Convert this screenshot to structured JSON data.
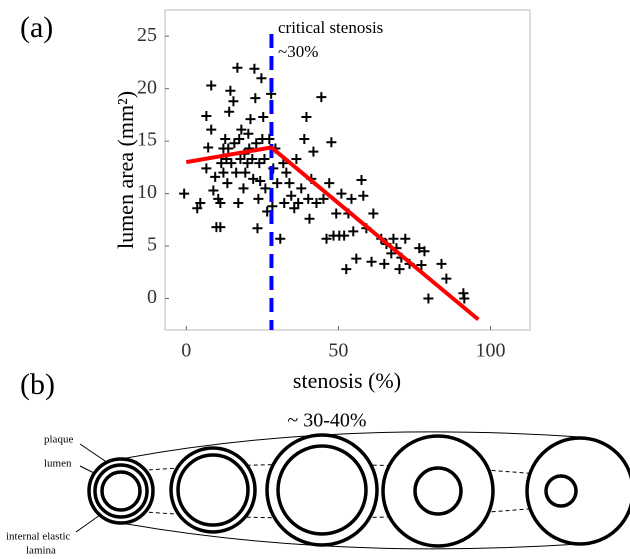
{
  "chart_data": {
    "type": "scatter",
    "panel_label": "(a)",
    "xlabel": "stenosis (%)",
    "ylabel": "lumen area (mm²)",
    "xlim": [
      -7,
      113
    ],
    "ylim": [
      -3,
      27.5
    ],
    "xticks": [
      0,
      50,
      100
    ],
    "yticks": [
      0,
      5,
      10,
      15,
      20,
      25
    ],
    "color": "#000000",
    "x": [
      -0.7,
      3.6,
      4.6,
      6.6,
      6.6,
      7.2,
      8.2,
      8.2,
      8.9,
      9.5,
      9.9,
      10.5,
      11.2,
      11.2,
      11.5,
      12.2,
      12.2,
      12.8,
      13.2,
      13.5,
      13.8,
      14.1,
      14.5,
      14.8,
      15.5,
      15.8,
      16.4,
      16.8,
      17.1,
      17.4,
      17.8,
      18.1,
      18.8,
      19.1,
      19.4,
      20.1,
      20.4,
      20.7,
      21.1,
      21.7,
      22,
      22.4,
      22.7,
      23,
      23.4,
      23.7,
      24,
      24.3,
      24.7,
      25,
      25.3,
      25.7,
      26,
      26.6,
      27.3,
      27.9,
      28.3,
      28.6,
      29.3,
      29.9,
      30.9,
      31.9,
      32.2,
      32.9,
      33.9,
      34.5,
      35.5,
      36.2,
      36.8,
      37.8,
      38.8,
      39.5,
      40.1,
      40.5,
      41.1,
      41.8,
      42.8,
      44.4,
      45.1,
      46.1,
      47,
      47.7,
      48.4,
      49.3,
      50.3,
      51,
      51.9,
      52.6,
      53.3,
      54.3,
      54.9,
      55.9,
      57.6,
      58.2,
      59.2,
      60.9,
      61.5,
      64.1,
      65.1,
      65.8,
      67.4,
      68.1,
      69.1,
      70.1,
      70.7,
      72,
      73.4,
      76.6,
      77.3,
      78.3,
      79.6,
      83.9,
      85.5,
      91.1,
      91.4
    ],
    "values": [
      10,
      8.6,
      9.1,
      12.4,
      17.4,
      14.4,
      20.3,
      16.1,
      10.3,
      11.6,
      6.8,
      9.5,
      6.8,
      9.1,
      12.9,
      14.3,
      12,
      15.2,
      13.3,
      11,
      14.3,
      17.8,
      19.8,
      12.9,
      18.8,
      14.8,
      12,
      22,
      9.1,
      15.2,
      13.3,
      16.1,
      10.5,
      13.8,
      12,
      12.9,
      15.7,
      14.3,
      17.1,
      13.3,
      11.4,
      21.9,
      19.1,
      14.8,
      6.7,
      9.5,
      12.9,
      11.2,
      21,
      15.2,
      17.3,
      13.3,
      10.5,
      8.3,
      15.2,
      19.5,
      8.8,
      12.4,
      14.3,
      11,
      5.7,
      12.9,
      9.1,
      12,
      11,
      9.8,
      8.6,
      13.3,
      9.1,
      10.5,
      15.2,
      17.3,
      9.5,
      7.6,
      11.4,
      14,
      9.1,
      19.2,
      9.5,
      5.7,
      11,
      14.9,
      6,
      8.1,
      6,
      10,
      6,
      2.8,
      8.1,
      9.5,
      6.4,
      3.8,
      11.3,
      9.8,
      6.7,
      3.5,
      8.1,
      5.7,
      3.3,
      5.2,
      4.3,
      5.7,
      4.8,
      2.8,
      3.9,
      5.7,
      3.3,
      4.8,
      3.2,
      4.5,
      0,
      3.3,
      1.9,
      0.5,
      0
    ],
    "fit_lines": [
      {
        "color": "#ff0000",
        "x": [
          0,
          28
        ],
        "y": [
          13,
          14.4
        ]
      },
      {
        "color": "#ff0000",
        "x": [
          28,
          96
        ],
        "y": [
          14.4,
          -2
        ]
      }
    ],
    "threshold": {
      "x": 28,
      "color": "#0000ff"
    },
    "annotations": [
      "critical stenosis",
      "~30%"
    ]
  },
  "diagram": {
    "panel_label": "(b)",
    "title": "~ 30-40%",
    "labels": {
      "plaque": "plaque",
      "lumen": "lumen",
      "iel": [
        "internal elastic",
        "lamina"
      ]
    }
  }
}
